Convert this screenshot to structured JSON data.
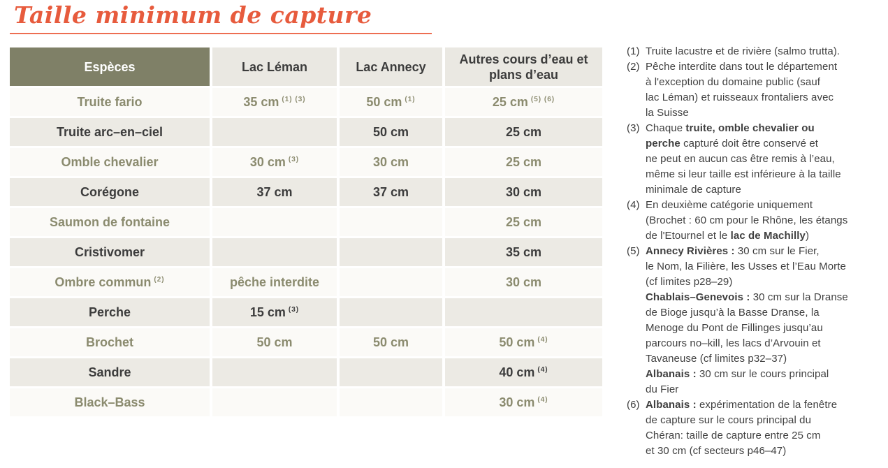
{
  "page": {
    "title": "Taille minimum de capture"
  },
  "colors": {
    "title_orange": "#e75b3d",
    "underline_orange": "#ed6e52",
    "header_olive": "#7f8067",
    "header_gray": "#eae8e2",
    "row_light": "#fbfaf7",
    "row_shaded": "#eceae4",
    "text_olive": "#8b8b6f",
    "text_dark": "#3c3c3c"
  },
  "table": {
    "columns": [
      "Espèces",
      "Lac Léman",
      "Lac Annecy",
      "Autres cours d’eau et plans d’eau"
    ],
    "rows": [
      {
        "species": "Truite fario",
        "leman": "35 cm",
        "leman_sup": "(1) (3)",
        "annecy": "50 cm",
        "annecy_sup": "(1)",
        "autres": "25 cm",
        "autres_sup": "(5) (6)"
      },
      {
        "species": "Truite arc–en–ciel",
        "leman": "",
        "annecy": "50 cm",
        "autres": "25 cm"
      },
      {
        "species": "Omble chevalier",
        "leman": "30 cm",
        "leman_sup": "(3)",
        "annecy": "30 cm",
        "autres": "25 cm"
      },
      {
        "species": "Corégone",
        "leman": "37 cm",
        "annecy": "37 cm",
        "autres": "30 cm"
      },
      {
        "species": "Saumon de fontaine",
        "leman": "",
        "annecy": "",
        "autres": "25 cm"
      },
      {
        "species": "Cristivomer",
        "leman": "",
        "annecy": "",
        "autres": "35 cm"
      },
      {
        "species": "Ombre commun",
        "species_sup": "(2)",
        "leman": "pêche interdite",
        "annecy": "",
        "autres": "30 cm"
      },
      {
        "species": "Perche",
        "leman": "15 cm",
        "leman_sup": "(3)",
        "annecy": "",
        "autres": ""
      },
      {
        "species": "Brochet",
        "leman": "50 cm",
        "annecy": "50 cm",
        "autres": "50 cm",
        "autres_sup": "(4)"
      },
      {
        "species": "Sandre",
        "leman": "",
        "annecy": "",
        "autres": "40 cm",
        "autres_sup": "(4)"
      },
      {
        "species": "Black–Bass",
        "leman": "",
        "annecy": "",
        "autres": "30 cm",
        "autres_sup": "(4)"
      }
    ]
  },
  "footnotes": [
    {
      "num": "(1)",
      "lines": [
        [
          {
            "t": "Truite lacustre et de rivière (salmo trutta)."
          }
        ]
      ]
    },
    {
      "num": "(2)",
      "lines": [
        [
          {
            "t": "Pêche interdite dans tout le département"
          }
        ],
        [
          {
            "t": "à l'exception du domaine public (sauf"
          }
        ],
        [
          {
            "t": "lac Léman) et ruisseaux frontaliers avec"
          }
        ],
        [
          {
            "t": "la Suisse"
          }
        ]
      ]
    },
    {
      "num": "(3)",
      "lines": [
        [
          {
            "t": "Chaque "
          },
          {
            "t": "truite, omble chevalier ou",
            "b": true
          }
        ],
        [
          {
            "t": "perche",
            "b": true
          },
          {
            "t": " capturé doit être conservé et"
          }
        ],
        [
          {
            "t": "ne peut en aucun cas être remis à l’eau,"
          }
        ],
        [
          {
            "t": "même si leur taille est inférieure à la taille"
          }
        ],
        [
          {
            "t": "minimale de capture"
          }
        ]
      ]
    },
    {
      "num": "(4)",
      "lines": [
        [
          {
            "t": "En deuxième catégorie uniquement"
          }
        ],
        [
          {
            "t": "(Brochet : 60 cm pour le Rhône, les étangs"
          }
        ],
        [
          {
            "t": "de l'Etournel et le "
          },
          {
            "t": "lac de Machilly",
            "b": true
          },
          {
            "t": ")"
          }
        ]
      ]
    },
    {
      "num": "(5)",
      "lines": [
        [
          {
            "t": "Annecy Rivières : ",
            "b": true
          },
          {
            "t": "30 cm sur le Fier,"
          }
        ],
        [
          {
            "t": "le Nom, la Filière, les Usses et l’Eau Morte"
          }
        ],
        [
          {
            "t": "(cf limites p28–29)"
          }
        ],
        [
          {
            "t": "Chablais–Genevois : ",
            "b": true
          },
          {
            "t": "30 cm sur la Dranse"
          }
        ],
        [
          {
            "t": "de Bioge jusqu’à la Basse Dranse, la"
          }
        ],
        [
          {
            "t": "Menoge du Pont de Fillinges jusqu’au"
          }
        ],
        [
          {
            "t": "parcours no–kill, les lacs d’Arvouin et"
          }
        ],
        [
          {
            "t": "Tavaneuse (cf limites p32–37)"
          }
        ],
        [
          {
            "t": "Albanais : ",
            "b": true
          },
          {
            "t": "30 cm sur le cours principal"
          }
        ],
        [
          {
            "t": "du Fier"
          }
        ]
      ]
    },
    {
      "num": "(6)",
      "lines": [
        [
          {
            "t": "Albanais : ",
            "b": true
          },
          {
            "t": "expérimentation de la fenêtre"
          }
        ],
        [
          {
            "t": "de capture sur le cours principal du"
          }
        ],
        [
          {
            "t": "Chéran: taille de capture entre 25 cm"
          }
        ],
        [
          {
            "t": "et 30 cm (cf secteurs p46–47)"
          }
        ]
      ]
    }
  ]
}
